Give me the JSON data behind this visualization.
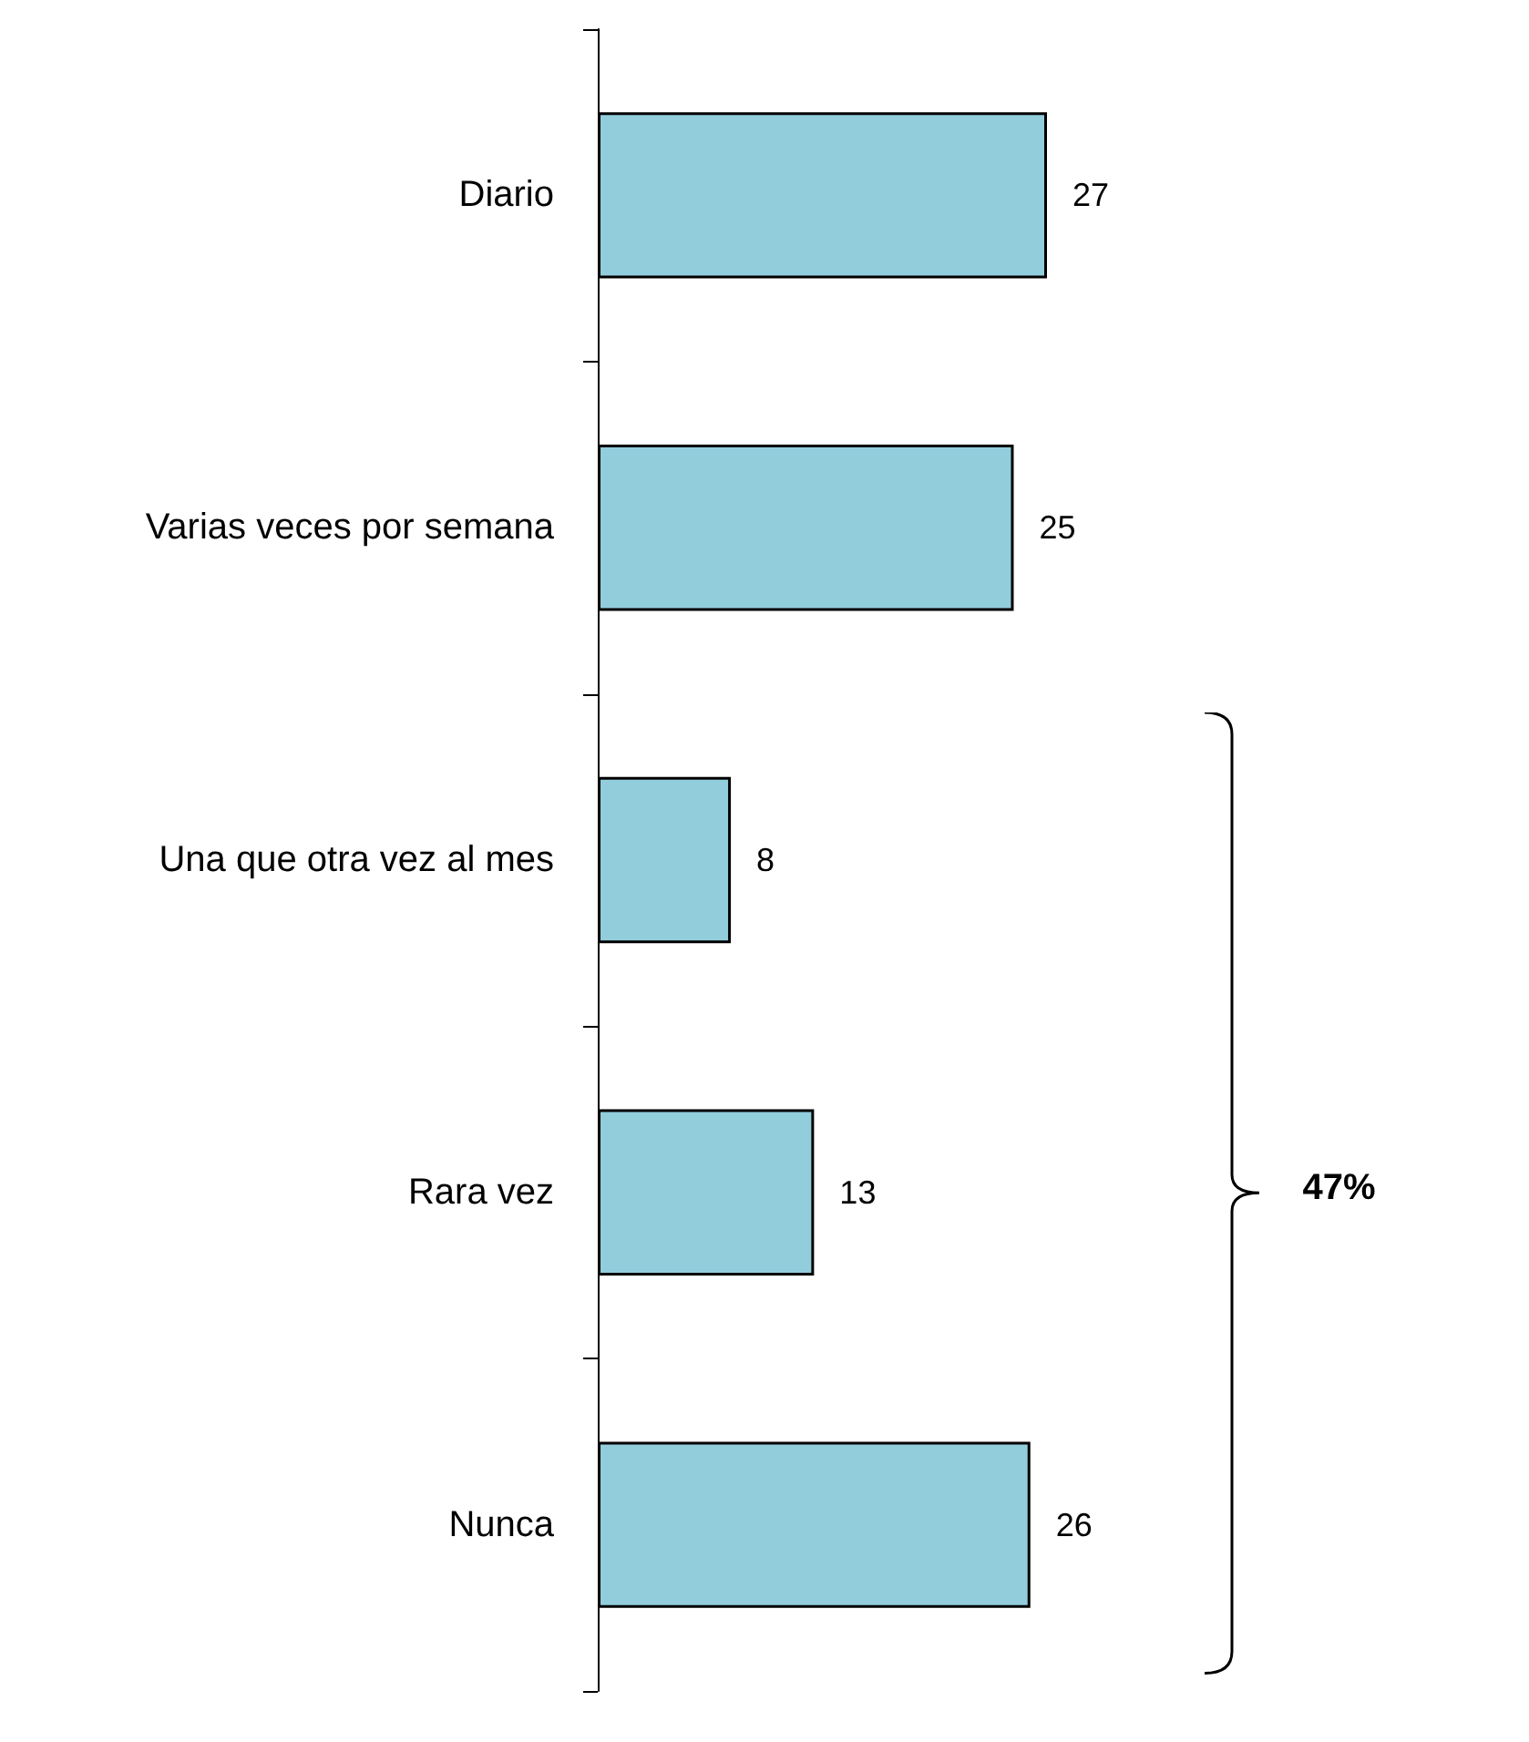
{
  "chart_data": {
    "type": "bar",
    "orientation": "horizontal",
    "categories": [
      "Diario",
      "Varias veces por semana",
      "Una que otra vez al mes",
      "Rara vez",
      "Nunca"
    ],
    "values": [
      27,
      25,
      8,
      13,
      26
    ],
    "color": "#92cddc",
    "data_labels": true,
    "annotations": [
      "47%"
    ]
  }
}
